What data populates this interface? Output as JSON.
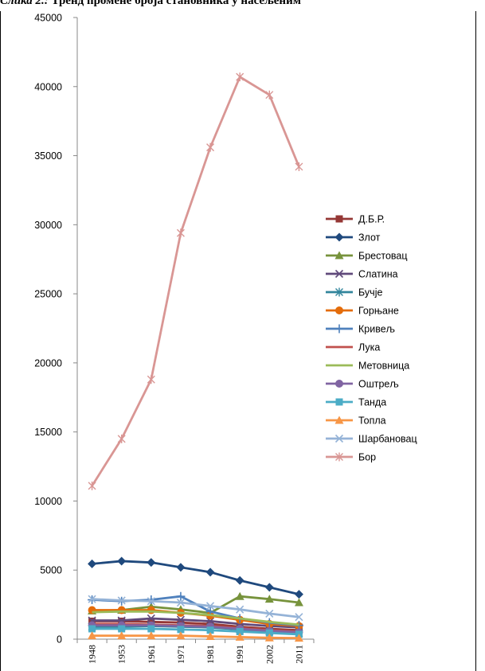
{
  "caption": {
    "prefix": "Слика 2.:",
    "text": "Тренд промене броја становника у насељеним"
  },
  "chart_data": {
    "type": "line",
    "title": "",
    "xlabel": "",
    "ylabel": "",
    "categories": [
      "1948",
      "1953",
      "1961",
      "1971",
      "1981",
      "1991",
      "2002",
      "2011"
    ],
    "ylim": [
      0,
      45000
    ],
    "yticks": [
      0,
      5000,
      10000,
      15000,
      20000,
      25000,
      30000,
      35000,
      40000,
      45000
    ],
    "legend": "right",
    "grid": false,
    "series": [
      {
        "name": "Д.Б.Р.",
        "color": "#953735",
        "marker": "square",
        "values": [
          1300,
          1300,
          1250,
          1200,
          1100,
          900,
          750,
          650
        ]
      },
      {
        "name": "Злот",
        "color": "#1F497D",
        "marker": "diamond",
        "values": [
          5450,
          5650,
          5550,
          5200,
          4850,
          4250,
          3750,
          3250
        ]
      },
      {
        "name": "Брестовац",
        "color": "#77933C",
        "marker": "triangle",
        "values": [
          2050,
          2100,
          2350,
          2150,
          1900,
          3100,
          2900,
          2650
        ]
      },
      {
        "name": "Слатина",
        "color": "#604A7B",
        "marker": "x",
        "values": [
          1350,
          1350,
          1500,
          1400,
          1300,
          1100,
          950,
          850
        ]
      },
      {
        "name": "Бучје",
        "color": "#31859C",
        "marker": "asterisk",
        "values": [
          900,
          900,
          950,
          900,
          850,
          700,
          550,
          450
        ]
      },
      {
        "name": "Горњане",
        "color": "#E46C0A",
        "marker": "circle",
        "values": [
          2100,
          2100,
          2100,
          1900,
          1700,
          1400,
          1100,
          950
        ]
      },
      {
        "name": "Кривељ",
        "color": "#4F81BD",
        "marker": "plus",
        "values": [
          2850,
          2750,
          2850,
          3100,
          2000,
          1500,
          1200,
          1000
        ]
      },
      {
        "name": "Лука",
        "color": "#C0504D",
        "marker": "none",
        "values": [
          1100,
          1100,
          1050,
          1000,
          950,
          800,
          650,
          550
        ]
      },
      {
        "name": "Метовница",
        "color": "#9BBB59",
        "marker": "none",
        "values": [
          1950,
          2000,
          2000,
          1900,
          1750,
          1500,
          1250,
          1050
        ]
      },
      {
        "name": "Оштрељ",
        "color": "#8064A2",
        "marker": "circle",
        "values": [
          1000,
          1000,
          1000,
          950,
          900,
          750,
          600,
          500
        ]
      },
      {
        "name": "Танда",
        "color": "#4BACC6",
        "marker": "square",
        "values": [
          750,
          750,
          750,
          700,
          650,
          550,
          450,
          350
        ]
      },
      {
        "name": "Топла",
        "color": "#F79646",
        "marker": "triangle",
        "values": [
          250,
          250,
          250,
          250,
          200,
          150,
          100,
          80
        ]
      },
      {
        "name": "Шарбановац",
        "color": "#95B3D7",
        "marker": "x",
        "values": [
          2900,
          2800,
          2750,
          2650,
          2400,
          2150,
          1850,
          1600
        ]
      },
      {
        "name": "Бор",
        "color": "#D99694",
        "marker": "asterisk",
        "values": [
          11100,
          14500,
          18800,
          29400,
          35600,
          40700,
          39400,
          34200
        ]
      }
    ]
  }
}
